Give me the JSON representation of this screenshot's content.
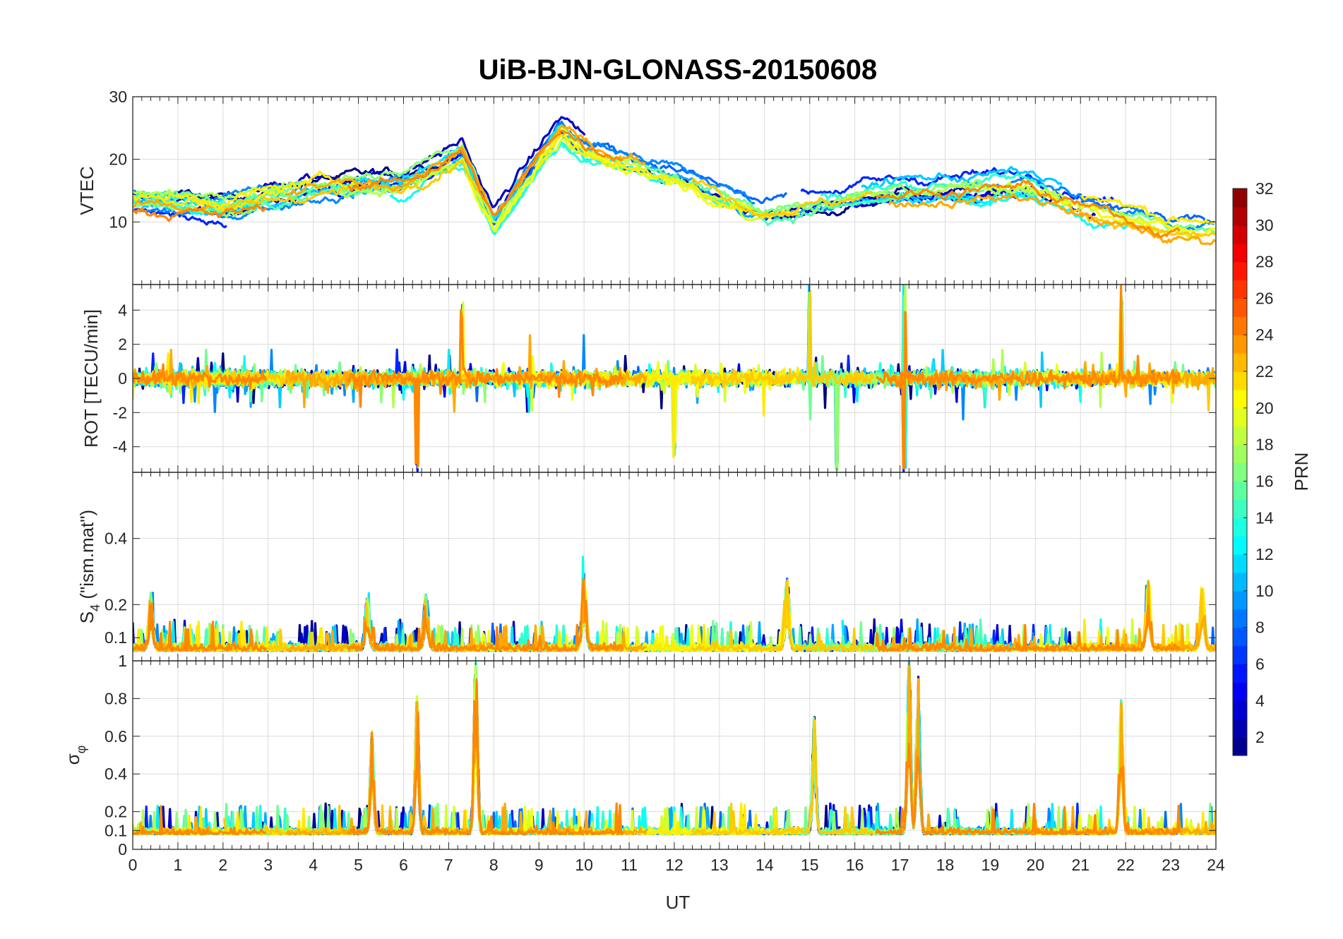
{
  "chart_data": {
    "type": "line",
    "title": "UiB-BJN-GLONASS-20150608",
    "xlabel": "UT",
    "xlim": [
      0,
      24
    ],
    "x_ticks": [
      "0",
      "1",
      "2",
      "3",
      "4",
      "5",
      "6",
      "7",
      "8",
      "9",
      "10",
      "11",
      "12",
      "13",
      "14",
      "15",
      "16",
      "17",
      "18",
      "19",
      "20",
      "21",
      "22",
      "23",
      "24"
    ],
    "colorbar": {
      "label": "PRN",
      "range": [
        1,
        32
      ],
      "ticks": [
        "2",
        "4",
        "6",
        "8",
        "10",
        "12",
        "14",
        "16",
        "18",
        "20",
        "22",
        "24",
        "26",
        "28",
        "30",
        "32"
      ],
      "colormap": "jet"
    },
    "series_legend": "Lines colored by satellite PRN (GLONASS)",
    "panels": [
      {
        "name": "vtec",
        "ylabel": "VTEC",
        "ylim": [
          0,
          30
        ],
        "y_ticks": [
          "10",
          "20",
          "30"
        ],
        "description": "Vertical TEC, baseline 10-15 TECU, peaks near 22-25 around 9-10 UT",
        "representative_points": [
          {
            "t": 0,
            "v": 13
          },
          {
            "t": 2,
            "v": 12
          },
          {
            "t": 4,
            "v": 15
          },
          {
            "t": 6,
            "v": 16
          },
          {
            "t": 7.3,
            "v": 21
          },
          {
            "t": 8,
            "v": 10
          },
          {
            "t": 9.5,
            "v": 25
          },
          {
            "t": 10,
            "v": 22
          },
          {
            "t": 12,
            "v": 18
          },
          {
            "t": 14,
            "v": 12
          },
          {
            "t": 17,
            "v": 15
          },
          {
            "t": 19.8,
            "v": 16
          },
          {
            "t": 21,
            "v": 13
          },
          {
            "t": 23,
            "v": 9
          },
          {
            "t": 24,
            "v": 9
          }
        ]
      },
      {
        "name": "rot",
        "ylabel": "ROT [TECU/min]",
        "ylim": [
          -5.5,
          5.5
        ],
        "y_ticks": [
          "-4",
          "-2",
          "0",
          "2",
          "4"
        ],
        "description": "Rate of TEC, mostly within +/-1, spikes to +/-5 near 6.3, 15, 17 UT",
        "spikes": [
          {
            "t": 6.3,
            "v": -5.5
          },
          {
            "t": 7.3,
            "v": 4.5
          },
          {
            "t": 12,
            "v": -4.8
          },
          {
            "t": 15,
            "v": 5.5
          },
          {
            "t": 15.6,
            "v": -5.5
          },
          {
            "t": 17.1,
            "v": 5.5
          },
          {
            "t": 17.1,
            "v": -5.5
          },
          {
            "t": 21.9,
            "v": 5.5
          }
        ]
      },
      {
        "name": "s4",
        "ylabel": "S4 (\"ism.mat\")",
        "ylabel_main": "S",
        "ylabel_sub": "4",
        "ylabel_rest": " (\"ism.mat\")",
        "ylim": [
          0.03,
          0.6
        ],
        "y_ticks": [
          "0.1",
          "0.2",
          "0.4"
        ],
        "description": "Amplitude scintillation index, baseline 0.05-0.1, peaks up to ~0.3",
        "peaks": [
          {
            "t": 0.4,
            "v": 0.22
          },
          {
            "t": 5.2,
            "v": 0.22
          },
          {
            "t": 6.5,
            "v": 0.23
          },
          {
            "t": 10,
            "v": 0.29
          },
          {
            "t": 14.5,
            "v": 0.28
          },
          {
            "t": 22.5,
            "v": 0.28
          },
          {
            "t": 23.7,
            "v": 0.26
          }
        ]
      },
      {
        "name": "sigma_phi",
        "ylabel": "σφ",
        "ylabel_main": "σ",
        "ylabel_sub": "φ",
        "ylim": [
          0,
          1
        ],
        "y_ticks": [
          "0",
          "0.1",
          "0.2",
          "0.4",
          "0.6",
          "0.8",
          "1"
        ],
        "description": "Phase scintillation index, baseline ~0.1, peaks near 1 at 7.6 and 17.2 UT",
        "peaks": [
          {
            "t": 5.3,
            "v": 0.63
          },
          {
            "t": 6.3,
            "v": 0.8
          },
          {
            "t": 7.6,
            "v": 1.0
          },
          {
            "t": 15.1,
            "v": 0.72
          },
          {
            "t": 17.2,
            "v": 1.0
          },
          {
            "t": 17.4,
            "v": 0.92
          },
          {
            "t": 21.9,
            "v": 0.8
          }
        ]
      }
    ]
  }
}
